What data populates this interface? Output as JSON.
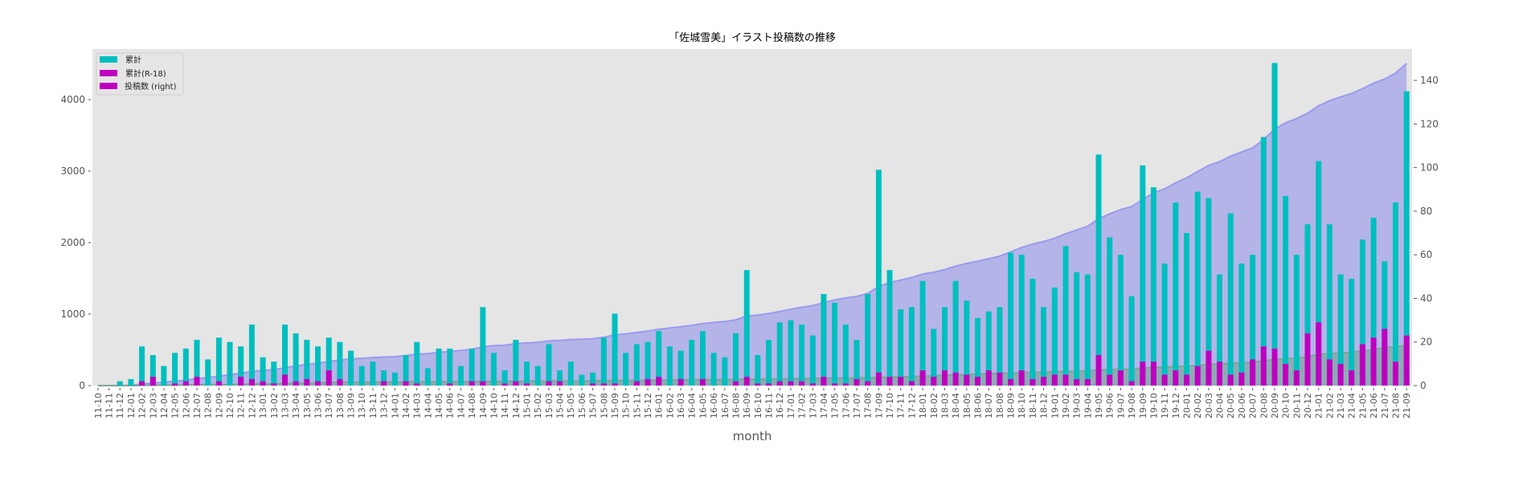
{
  "chart_data": {
    "type": "bar",
    "title": "「佐城雪美」イラスト投稿数の推移",
    "xlabel": "month",
    "ylabel": "",
    "ylabel_right": "",
    "ylim": [
      0,
      4708
    ],
    "ylim_right": [
      0,
      154.4
    ],
    "yticks": [
      0,
      1000,
      2000,
      3000,
      4000
    ],
    "yticks_right": [
      0,
      20,
      40,
      60,
      80,
      100,
      120,
      140
    ],
    "grid": false,
    "legend_position": "upper left",
    "legend": [
      {
        "label": "累計",
        "color": "#00bfbf"
      },
      {
        "label": "累計(R-18)",
        "color": "#bf00bf"
      },
      {
        "label": "投稿数 (right)",
        "color": "#bf00bf"
      }
    ],
    "categories": [
      "11-10",
      "11-11",
      "11-12",
      "12-01",
      "12-02",
      "12-03",
      "12-04",
      "12-05",
      "12-06",
      "12-07",
      "12-08",
      "12-09",
      "12-10",
      "12-11",
      "12-12",
      "13-01",
      "13-02",
      "13-03",
      "13-04",
      "13-05",
      "13-06",
      "13-07",
      "13-08",
      "13-09",
      "13-10",
      "13-11",
      "13-12",
      "14-01",
      "14-02",
      "14-03",
      "14-04",
      "14-05",
      "14-06",
      "14-07",
      "14-08",
      "14-09",
      "14-10",
      "14-11",
      "14-12",
      "15-01",
      "15-02",
      "15-03",
      "15-04",
      "15-05",
      "15-06",
      "15-07",
      "15-08",
      "15-09",
      "15-10",
      "15-11",
      "15-12",
      "16-01",
      "16-02",
      "16-03",
      "16-04",
      "16-05",
      "16-06",
      "16-07",
      "16-08",
      "16-09",
      "16-10",
      "16-11",
      "16-12",
      "17-01",
      "17-02",
      "17-03",
      "17-04",
      "17-05",
      "17-06",
      "17-07",
      "17-08",
      "17-09",
      "17-10",
      "17-11",
      "17-12",
      "18-01",
      "18-02",
      "18-03",
      "18-04",
      "18-05",
      "18-06",
      "18-07",
      "18-08",
      "18-09",
      "18-10",
      "18-11",
      "18-12",
      "19-01",
      "19-02",
      "19-03",
      "19-04",
      "19-05",
      "19-06",
      "19-07",
      "19-08",
      "19-09",
      "19-10",
      "19-11",
      "19-12",
      "20-01",
      "20-02",
      "20-03",
      "20-04",
      "20-05",
      "20-06",
      "20-07",
      "20-08",
      "20-09",
      "20-10",
      "20-11",
      "20-12",
      "21-01",
      "21-02",
      "21-03",
      "21-04",
      "21-05",
      "21-06",
      "21-07",
      "21-08",
      "21-09"
    ],
    "series": [
      {
        "name": "投稿数 (right)",
        "axis": "right",
        "kind": "bar",
        "color": "#00bfbf",
        "values": [
          0,
          0,
          2,
          3,
          18,
          14,
          9,
          15,
          17,
          21,
          12,
          22,
          20,
          18,
          28,
          13,
          11,
          28,
          24,
          21,
          18,
          22,
          20,
          16,
          9,
          11,
          7,
          6,
          14,
          20,
          8,
          17,
          17,
          9,
          17,
          36,
          15,
          7,
          21,
          11,
          9,
          19,
          7,
          11,
          5,
          6,
          22,
          33,
          15,
          19,
          20,
          25,
          18,
          16,
          21,
          25,
          15,
          13,
          24,
          53,
          14,
          21,
          29,
          30,
          28,
          23,
          42,
          38,
          28,
          21,
          42,
          99,
          53,
          35,
          36,
          48,
          26,
          36,
          48,
          39,
          31,
          34,
          36,
          61,
          60,
          49,
          36,
          45,
          64,
          52,
          51,
          106,
          68,
          60,
          41,
          101,
          91,
          56,
          84,
          70,
          89,
          86,
          51,
          79,
          56,
          60,
          114,
          148,
          87,
          60,
          74,
          103,
          74,
          51,
          49,
          67,
          77,
          57,
          84,
          135
        ]
      },
      {
        "name": "投稿数 R-18 (right)",
        "axis": "right",
        "kind": "bar",
        "color": "#bf00bf",
        "values": [
          0,
          0,
          0,
          0,
          2,
          4,
          0,
          1,
          2,
          4,
          0,
          2,
          0,
          4,
          3,
          2,
          1,
          5,
          2,
          3,
          2,
          7,
          3,
          0,
          0,
          0,
          2,
          0,
          2,
          1,
          0,
          0,
          1,
          0,
          2,
          2,
          0,
          1,
          2,
          1,
          0,
          2,
          2,
          0,
          0,
          1,
          1,
          1,
          0,
          2,
          3,
          4,
          0,
          3,
          0,
          3,
          0,
          0,
          2,
          4,
          1,
          1,
          2,
          2,
          2,
          1,
          4,
          1,
          1,
          3,
          2,
          6,
          4,
          4,
          2,
          7,
          4,
          7,
          6,
          5,
          4,
          7,
          6,
          3,
          7,
          3,
          4,
          5,
          5,
          3,
          3,
          14,
          5,
          7,
          2,
          11,
          11,
          5,
          7,
          5,
          9,
          16,
          11,
          5,
          6,
          12,
          18,
          17,
          10,
          7,
          24,
          29,
          12,
          10,
          7,
          19,
          22,
          26,
          11,
          23
        ]
      },
      {
        "name": "累計",
        "axis": "left",
        "kind": "area",
        "color": "#b4b4e8",
        "line_color": "#9a9af0",
        "values": []
      },
      {
        "name": "累計(R-18)",
        "axis": "left",
        "kind": "area",
        "color": "#8faab5",
        "line_color": "#7fa598",
        "values": []
      }
    ],
    "totals": {
      "cumulative_end": 4506,
      "cumulative_r18_end": 570
    }
  },
  "colors": {
    "plot_bg": "#e5e5e5",
    "bar_main": "#00bfbf",
    "bar_r18": "#bf00bf",
    "area_main": "#b4b4e8",
    "area_line": "#9a9af0",
    "area_r18": "#8faab5",
    "area_r18_line": "#7fa598",
    "tick": "#555555"
  }
}
